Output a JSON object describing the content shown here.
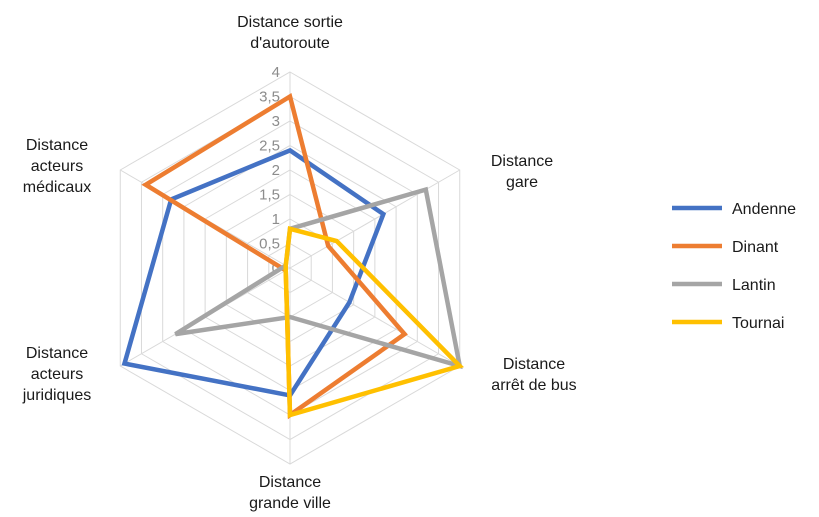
{
  "chart_data": {
    "type": "radar",
    "title": "",
    "axes": [
      [
        "Distance sortie",
        "d'autoroute"
      ],
      [
        "Distance",
        "gare"
      ],
      [
        "Distance",
        "arrêt de bus"
      ],
      [
        "Distance",
        "grande ville"
      ],
      [
        "Distance",
        "acteurs",
        "juridiques"
      ],
      [
        "Distance",
        "acteurs",
        "médicaux"
      ]
    ],
    "ticks": [
      "0",
      "0,5",
      "1",
      "1,5",
      "2",
      "2,5",
      "3",
      "3,5",
      "4"
    ],
    "rlim": [
      0,
      4
    ],
    "grid": true,
    "legend_position": "right",
    "series": [
      {
        "name": "Andenne",
        "color": "#4472C4",
        "values": [
          2.4,
          2.2,
          1.4,
          2.6,
          3.9,
          2.8
        ]
      },
      {
        "name": "Dinant",
        "color": "#ED7D31",
        "values": [
          3.5,
          0.9,
          2.7,
          3.0,
          0.1,
          3.4
        ]
      },
      {
        "name": "Lantin",
        "color": "#A5A5A5",
        "values": [
          0.8,
          3.2,
          4.0,
          1.0,
          2.7,
          0.1
        ]
      },
      {
        "name": "Tournai",
        "color": "#FFC000",
        "values": [
          0.8,
          1.1,
          4.0,
          3.0,
          0.1,
          0.1
        ]
      }
    ]
  }
}
